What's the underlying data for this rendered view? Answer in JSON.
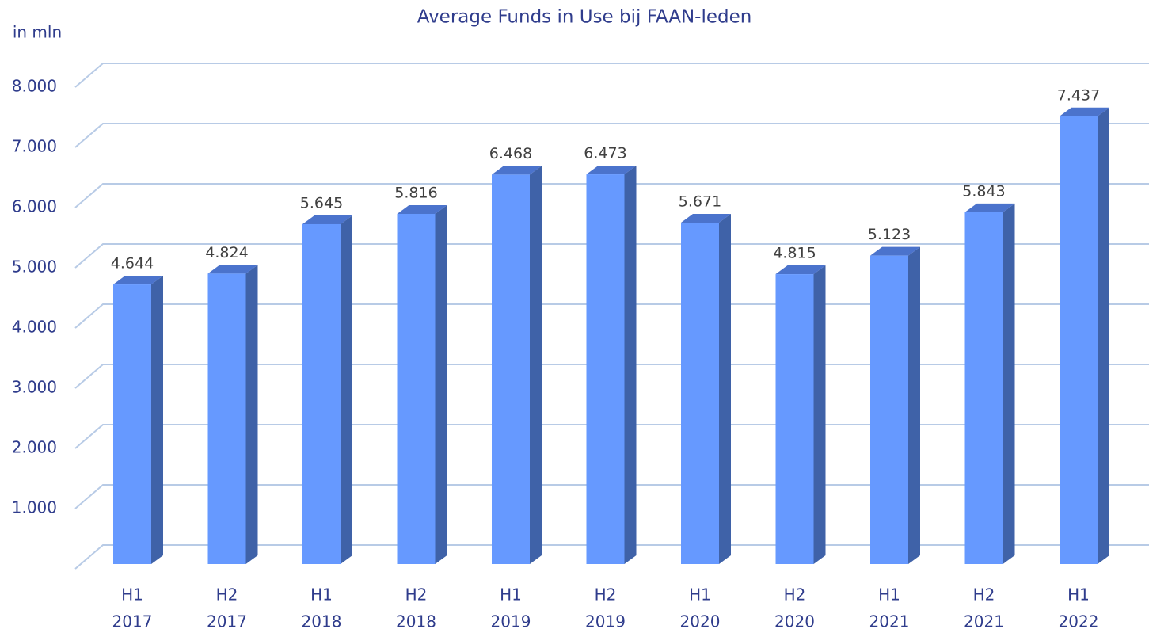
{
  "chart_data": {
    "type": "bar3d",
    "title": "Average Funds in Use bij FAAN-leden",
    "y_label": "in mln",
    "categories": [
      [
        "H1",
        "2017"
      ],
      [
        "H2",
        "2017"
      ],
      [
        "H1",
        "2018"
      ],
      [
        "H2",
        "2018"
      ],
      [
        "H1",
        "2019"
      ],
      [
        "H2",
        "2019"
      ],
      [
        "H1",
        "2020"
      ],
      [
        "H2",
        "2020"
      ],
      [
        "H1",
        "2021"
      ],
      [
        "H2",
        "2021"
      ],
      [
        "H1",
        "2022"
      ]
    ],
    "values": [
      4644,
      4824,
      5645,
      5816,
      6468,
      6473,
      5671,
      4815,
      5123,
      5843,
      7437
    ],
    "value_labels": [
      "4.644",
      "4.824",
      "5.645",
      "5.816",
      "6.468",
      "6.473",
      "5.671",
      "4.815",
      "5.123",
      "5.843",
      "7.437"
    ],
    "color": "#6699ff",
    "ylim": [
      0,
      8000
    ],
    "yticks": [
      {
        "value": 1000,
        "label": "1.000"
      },
      {
        "value": 2000,
        "label": "2.000"
      },
      {
        "value": 3000,
        "label": "3.000"
      },
      {
        "value": 4000,
        "label": "4.000"
      },
      {
        "value": 5000,
        "label": "5.000"
      },
      {
        "value": 6000,
        "label": "6.000"
      },
      {
        "value": 7000,
        "label": "7.000"
      },
      {
        "value": 8000,
        "label": "8.000"
      }
    ],
    "grid": true
  }
}
